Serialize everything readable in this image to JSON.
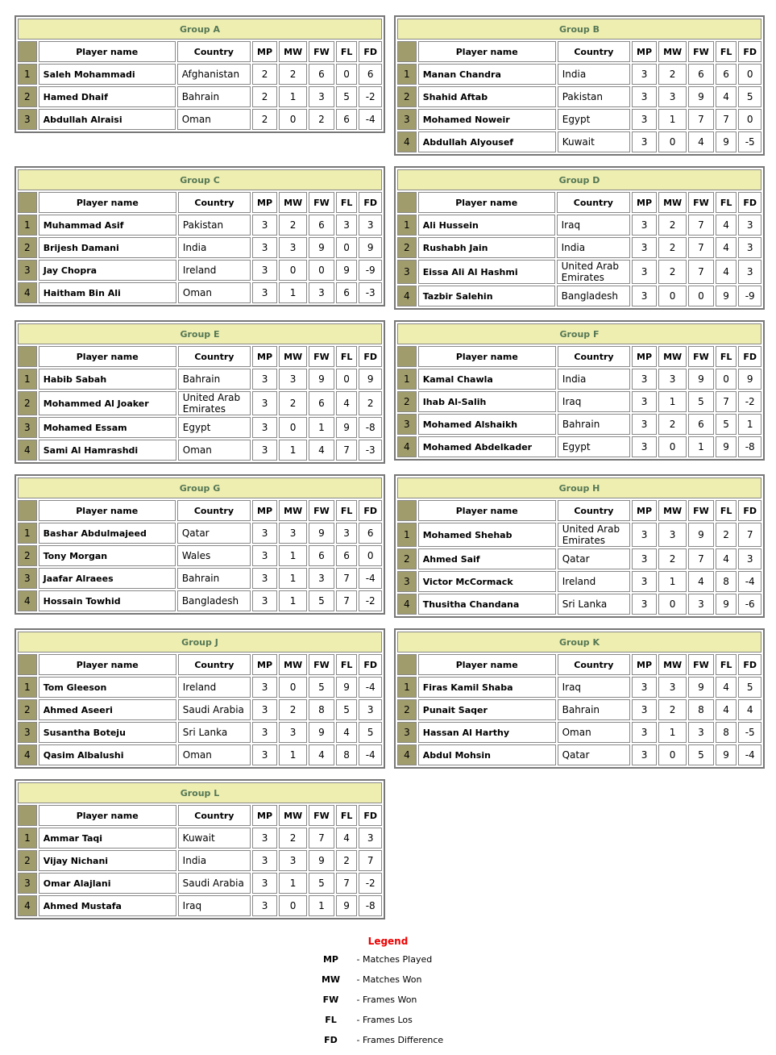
{
  "columns": [
    "Player name",
    "Country",
    "MP",
    "MW",
    "FW",
    "FL",
    "FD"
  ],
  "groups": [
    {
      "title": "Group A",
      "rows": [
        [
          "1",
          "Saleh Mohammadi",
          "Afghanistan",
          "2",
          "2",
          "6",
          "0",
          "6"
        ],
        [
          "2",
          "Hamed Dhaif",
          "Bahrain",
          "2",
          "1",
          "3",
          "5",
          "-2"
        ],
        [
          "3",
          "Abdullah Alraisi",
          "Oman",
          "2",
          "0",
          "2",
          "6",
          "-4"
        ]
      ]
    },
    {
      "title": "Group B",
      "rows": [
        [
          "1",
          "Manan Chandra",
          "India",
          "3",
          "2",
          "6",
          "6",
          "0"
        ],
        [
          "2",
          "Shahid Aftab",
          "Pakistan",
          "3",
          "3",
          "9",
          "4",
          "5"
        ],
        [
          "3",
          "Mohamed Noweir",
          "Egypt",
          "3",
          "1",
          "7",
          "7",
          "0"
        ],
        [
          "4",
          "Abdullah Alyousef",
          "Kuwait",
          "3",
          "0",
          "4",
          "9",
          "-5"
        ]
      ]
    },
    {
      "title": "Group C",
      "rows": [
        [
          "1",
          "Muhammad Asif",
          "Pakistan",
          "3",
          "2",
          "6",
          "3",
          "3"
        ],
        [
          "2",
          "Brijesh Damani",
          "India",
          "3",
          "3",
          "9",
          "0",
          "9"
        ],
        [
          "3",
          "Jay Chopra",
          "Ireland",
          "3",
          "0",
          "0",
          "9",
          "-9"
        ],
        [
          "4",
          "Haitham Bin Ali",
          "Oman",
          "3",
          "1",
          "3",
          "6",
          "-3"
        ]
      ]
    },
    {
      "title": "Group D",
      "rows": [
        [
          "1",
          "Ali Hussein",
          "Iraq",
          "3",
          "2",
          "7",
          "4",
          "3"
        ],
        [
          "2",
          "Rushabh Jain",
          "India",
          "3",
          "2",
          "7",
          "4",
          "3"
        ],
        [
          "3",
          "Eissa Ali Al Hashmi",
          "United Arab Emirates",
          "3",
          "2",
          "7",
          "4",
          "3"
        ],
        [
          "4",
          "Tazbir Salehin",
          "Bangladesh",
          "3",
          "0",
          "0",
          "9",
          "-9"
        ]
      ]
    },
    {
      "title": "Group E",
      "rows": [
        [
          "1",
          "Habib Sabah",
          "Bahrain",
          "3",
          "3",
          "9",
          "0",
          "9"
        ],
        [
          "2",
          "Mohammed Al Joaker",
          "United Arab Emirates",
          "3",
          "2",
          "6",
          "4",
          "2"
        ],
        [
          "3",
          "Mohamed Essam",
          "Egypt",
          "3",
          "0",
          "1",
          "9",
          "-8"
        ],
        [
          "4",
          "Sami Al Hamrashdi",
          "Oman",
          "3",
          "1",
          "4",
          "7",
          "-3"
        ]
      ]
    },
    {
      "title": "Group F",
      "rows": [
        [
          "1",
          "Kamal Chawla",
          "India",
          "3",
          "3",
          "9",
          "0",
          "9"
        ],
        [
          "2",
          "Ihab Al-Salih",
          "Iraq",
          "3",
          "1",
          "5",
          "7",
          "-2"
        ],
        [
          "3",
          "Mohamed Alshaikh",
          "Bahrain",
          "3",
          "2",
          "6",
          "5",
          "1"
        ],
        [
          "4",
          "Mohamed Abdelkader",
          "Egypt",
          "3",
          "0",
          "1",
          "9",
          "-8"
        ]
      ]
    },
    {
      "title": "Group G",
      "rows": [
        [
          "1",
          "Bashar Abdulmajeed",
          "Qatar",
          "3",
          "3",
          "9",
          "3",
          "6"
        ],
        [
          "2",
          "Tony Morgan",
          "Wales",
          "3",
          "1",
          "6",
          "6",
          "0"
        ],
        [
          "3",
          "Jaafar Alraees",
          "Bahrain",
          "3",
          "1",
          "3",
          "7",
          "-4"
        ],
        [
          "4",
          "Hossain Towhid",
          "Bangladesh",
          "3",
          "1",
          "5",
          "7",
          "-2"
        ]
      ]
    },
    {
      "title": "Group H",
      "rows": [
        [
          "1",
          "Mohamed Shehab",
          "United Arab Emirates",
          "3",
          "3",
          "9",
          "2",
          "7"
        ],
        [
          "2",
          "Ahmed Saif",
          "Qatar",
          "3",
          "2",
          "7",
          "4",
          "3"
        ],
        [
          "3",
          "Victor McCormack",
          "Ireland",
          "3",
          "1",
          "4",
          "8",
          "-4"
        ],
        [
          "4",
          "Thusitha Chandana",
          "Sri Lanka",
          "3",
          "0",
          "3",
          "9",
          "-6"
        ]
      ]
    },
    {
      "title": "Group J",
      "rows": [
        [
          "1",
          "Tom Gleeson",
          "Ireland",
          "3",
          "0",
          "5",
          "9",
          "-4"
        ],
        [
          "2",
          "Ahmed Aseeri",
          "Saudi Arabia",
          "3",
          "2",
          "8",
          "5",
          "3"
        ],
        [
          "3",
          "Susantha Boteju",
          "Sri Lanka",
          "3",
          "3",
          "9",
          "4",
          "5"
        ],
        [
          "4",
          "Qasim Albalushi",
          "Oman",
          "3",
          "1",
          "4",
          "8",
          "-4"
        ]
      ]
    },
    {
      "title": "Group K",
      "rows": [
        [
          "1",
          "Firas Kamil Shaba",
          "Iraq",
          "3",
          "3",
          "9",
          "4",
          "5"
        ],
        [
          "2",
          "Punait Saqer",
          "Bahrain",
          "3",
          "2",
          "8",
          "4",
          "4"
        ],
        [
          "3",
          "Hassan Al Harthy",
          "Oman",
          "3",
          "1",
          "3",
          "8",
          "-5"
        ],
        [
          "4",
          "Abdul Mohsin",
          "Qatar",
          "3",
          "0",
          "5",
          "9",
          "-4"
        ]
      ]
    },
    {
      "title": "Group L",
      "rows": [
        [
          "1",
          "Ammar Taqi",
          "Kuwait",
          "3",
          "2",
          "7",
          "4",
          "3"
        ],
        [
          "2",
          "Vijay Nichani",
          "India",
          "3",
          "3",
          "9",
          "2",
          "7"
        ],
        [
          "3",
          "Omar Alajlani",
          "Saudi Arabia",
          "3",
          "1",
          "5",
          "7",
          "-2"
        ],
        [
          "4",
          "Ahmed Mustafa",
          "Iraq",
          "3",
          "0",
          "1",
          "9",
          "-8"
        ]
      ]
    }
  ],
  "legend": {
    "title": "Legend",
    "items": [
      [
        "MP",
        "- Matches Played"
      ],
      [
        "MW",
        "- Matches Won"
      ],
      [
        "FW",
        "- Frames Won"
      ],
      [
        "FL",
        "- Frames Los"
      ],
      [
        "FD",
        "- Frames Difference"
      ]
    ]
  },
  "colors": {
    "title_bg": "#eeeeb0",
    "title_text": "#557755",
    "rank_bg": "#a09c6c",
    "legend_title": "#ee0000"
  }
}
